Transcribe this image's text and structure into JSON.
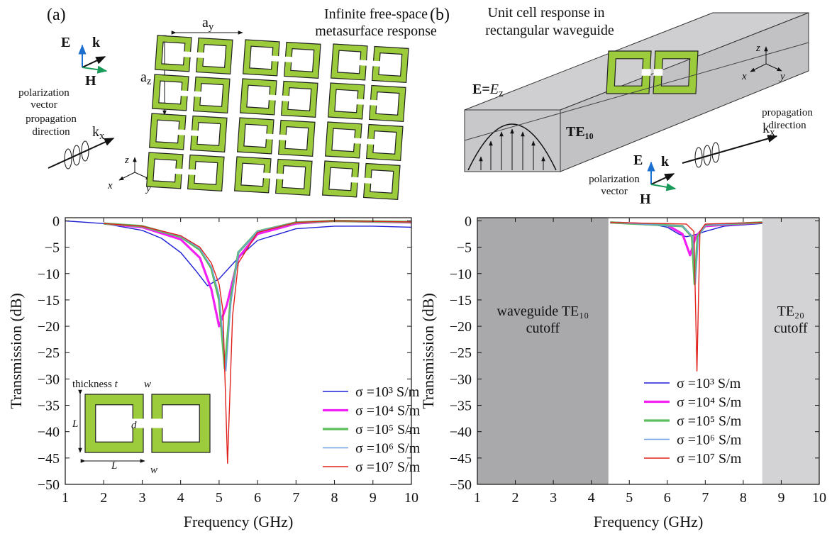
{
  "chart_data": [
    {
      "type": "line",
      "xlabel": "Frequency (GHz)",
      "ylabel": "Transmission (dB)",
      "xlim": [
        1,
        10
      ],
      "ylim": [
        -50,
        0.6
      ],
      "xticks": [
        1,
        2,
        3,
        4,
        5,
        6,
        7,
        8,
        9,
        10
      ],
      "yticks": [
        0,
        {
          "value": -5,
          "label": "−5"
        },
        {
          "value": -10,
          "label": "−10"
        },
        {
          "value": -15,
          "label": "−15"
        },
        {
          "value": -20,
          "label": "−20"
        },
        {
          "value": -25,
          "label": "−25"
        },
        {
          "value": -30,
          "label": "−30"
        },
        {
          "value": -35,
          "label": "−35"
        },
        {
          "value": -40,
          "label": "−40"
        },
        {
          "value": -45,
          "label": "−45"
        },
        {
          "value": -50,
          "label": "−50"
        }
      ],
      "series": [
        {
          "name": "σ =10³ S/m",
          "color": "#1f1fd6",
          "x": [
            1,
            2,
            3,
            3.5,
            4,
            4.4,
            4.7,
            5,
            5.5,
            6,
            7,
            8,
            9,
            10
          ],
          "values": [
            0,
            -0.5,
            -1.8,
            -3.3,
            -6,
            -9.5,
            -12.3,
            -11,
            -7,
            -3.7,
            -1.5,
            -1,
            -1,
            -1.2
          ]
        },
        {
          "name": "σ =10⁴ S/m",
          "color": "#f21ff2",
          "x": [
            2,
            3,
            4,
            4.5,
            4.8,
            5,
            5.2,
            5.5,
            6,
            7,
            8,
            10
          ],
          "values": [
            -0.5,
            -1.2,
            -3.5,
            -7,
            -13,
            -20,
            -16,
            -7,
            -2.5,
            -0.5,
            0,
            -0.3
          ]
        },
        {
          "name": "σ =10⁵ S/m",
          "color": "#5cbf5c",
          "x": [
            2,
            3,
            4,
            4.5,
            4.8,
            5,
            5.15,
            5.3,
            5.5,
            6,
            7,
            8,
            10
          ],
          "values": [
            -0.5,
            -1,
            -3,
            -5.5,
            -9,
            -15,
            -28,
            -15,
            -6,
            -2,
            -0.3,
            0,
            -0.2
          ]
        },
        {
          "name": "σ =10⁶ S/m",
          "color": "#6f9fe0",
          "x": [
            2,
            3,
            4,
            4.5,
            4.8,
            5,
            5.18,
            5.3,
            5.5,
            6,
            7,
            8,
            10
          ],
          "values": [
            -0.5,
            -1,
            -2.9,
            -5.3,
            -8.7,
            -14,
            -28.5,
            -16,
            -6,
            -2,
            -0.3,
            0,
            -0.2
          ]
        },
        {
          "name": "σ =10⁷ S/m",
          "color": "#e0201b",
          "x": [
            2,
            3,
            4,
            4.5,
            4.8,
            5,
            5.1,
            5.22,
            5.35,
            5.5,
            6,
            7,
            8,
            10
          ],
          "values": [
            -0.5,
            -1,
            -2.8,
            -5,
            -8,
            -12,
            -17,
            -46,
            -18,
            -8,
            -2.2,
            -0.3,
            0,
            -0.2
          ]
        }
      ]
    },
    {
      "type": "line",
      "xlabel": "Frequency (GHz)",
      "ylabel": "Transmission (dB)",
      "xlim": [
        1,
        10
      ],
      "ylim": [
        -50,
        0.6
      ],
      "xticks": [
        1,
        2,
        3,
        4,
        5,
        6,
        7,
        8,
        9,
        10
      ],
      "yticks": [
        0,
        {
          "value": -5,
          "label": "−5"
        },
        {
          "value": -10,
          "label": "−10"
        },
        {
          "value": -15,
          "label": "−15"
        },
        {
          "value": -20,
          "label": "−20"
        },
        {
          "value": -25,
          "label": "−25"
        },
        {
          "value": -30,
          "label": "−30"
        },
        {
          "value": -35,
          "label": "−35"
        },
        {
          "value": -40,
          "label": "−40"
        },
        {
          "value": -45,
          "label": "−45"
        },
        {
          "value": -50,
          "label": "−50"
        }
      ],
      "shaded": [
        {
          "x": [
            1,
            4.45
          ],
          "color": "#a9a9ac",
          "label": [
            "waveguide TE₁₀",
            "cutoff"
          ]
        },
        {
          "x": [
            8.5,
            10
          ],
          "color": "#d3d3d5",
          "label": [
            "TE₂₀",
            "cutoff"
          ]
        }
      ],
      "series": [
        {
          "name": "σ =10³ S/m",
          "color": "#1f1fd6",
          "x": [
            4.5,
            5.5,
            6,
            6.3,
            6.5,
            6.7,
            7,
            7.5,
            8.5
          ],
          "values": [
            -0.3,
            -0.5,
            -1.2,
            -2.5,
            -3,
            -2.7,
            -2,
            -1,
            -0.5
          ]
        },
        {
          "name": "σ =10⁴ S/m",
          "color": "#f21ff2",
          "x": [
            4.5,
            6,
            6.4,
            6.6,
            6.75,
            7,
            8.5
          ],
          "values": [
            -0.3,
            -0.8,
            -2.5,
            -6.5,
            -3,
            -1,
            -0.3
          ]
        },
        {
          "name": "σ =10⁵ S/m",
          "color": "#5cbf5c",
          "x": [
            4.5,
            6.4,
            6.65,
            6.72,
            6.8,
            7,
            8.5
          ],
          "values": [
            -0.3,
            -1,
            -3,
            -12,
            -3,
            -0.8,
            -0.3
          ]
        },
        {
          "name": "σ =10⁶ S/m",
          "color": "#6f9fe0",
          "x": [
            4.5,
            6.4,
            6.67,
            6.74,
            6.82,
            7,
            8.5
          ],
          "values": [
            -0.3,
            -1,
            -3,
            -12,
            -3,
            -0.8,
            -0.3
          ]
        },
        {
          "name": "σ =10⁷ S/m",
          "color": "#e0201b",
          "x": [
            4.5,
            6.5,
            6.7,
            6.78,
            6.86,
            7,
            8.5
          ],
          "values": [
            -0.3,
            -0.6,
            -2,
            -28.5,
            -2,
            -0.6,
            -0.3
          ]
        }
      ]
    }
  ],
  "inset": [
    "thickness",
    "t",
    "w",
    "L",
    "d",
    "L",
    "w"
  ],
  "diagram_a": {
    "panel": "(a)",
    "title": [
      "Infinite free-space",
      "metasurface response"
    ],
    "period_y": [
      "a",
      "y"
    ],
    "period_z": [
      "a",
      "z"
    ],
    "E": "E",
    "k": "k",
    "H": "H",
    "polarization": [
      "polarization",
      "vector"
    ],
    "propagation": [
      "propagation",
      "direction"
    ],
    "kx": [
      "k",
      "x"
    ],
    "axes": [
      "z",
      "x",
      "y"
    ]
  },
  "diagram_b": {
    "panel": "(b)",
    "title": [
      "Unit cell response in",
      "rectangular waveguide"
    ],
    "field": [
      "E",
      "=",
      "E",
      "z"
    ],
    "mode": "TE₁₀",
    "E": "E",
    "k": "k",
    "H": "H",
    "polarization": [
      "polarization",
      "vector"
    ],
    "propagation": [
      "propagation",
      "direction"
    ],
    "kx": [
      "k",
      "x"
    ],
    "axes": [
      "z",
      "x",
      "y"
    ]
  }
}
